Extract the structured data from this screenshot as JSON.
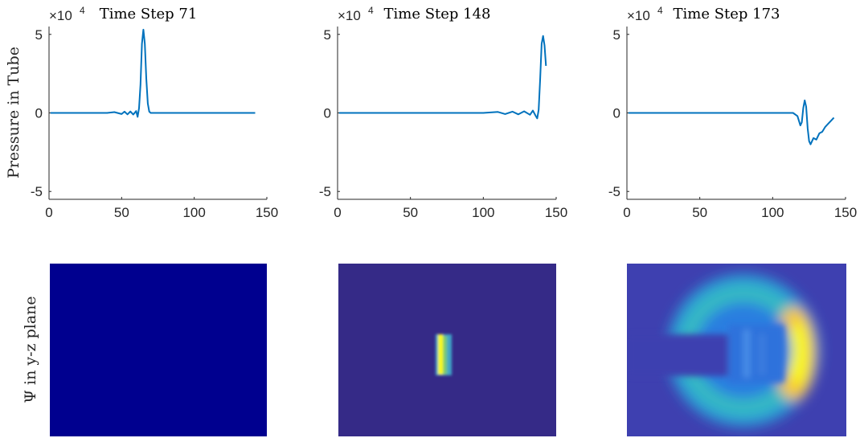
{
  "row_labels": {
    "top": "Pressure in Tube",
    "bottom": "Ψ in y-z plane"
  },
  "chart_data": [
    {
      "type": "line",
      "title": "Time Step 71",
      "exponent_label": "×10",
      "exponent_power": "4",
      "xlabel": "",
      "ylabel": "Pressure in Tube",
      "xlim": [
        0,
        150
      ],
      "ylim": [
        -55000,
        55000
      ],
      "xticks": [
        0,
        50,
        100,
        150
      ],
      "xtick_labels": [
        "0",
        "50",
        "100",
        "150"
      ],
      "yticks": [
        50000,
        0,
        -50000
      ],
      "ytick_labels": [
        "5",
        "0",
        "-5"
      ],
      "grid": false,
      "color": "#0072BD",
      "series": [
        {
          "x": [
            1,
            20,
            40,
            45,
            50,
            52,
            54,
            56,
            58,
            60,
            61,
            62,
            63,
            64,
            65,
            66,
            67,
            68,
            69,
            70,
            71,
            72,
            80,
            100,
            142
          ],
          "y": [
            0,
            0,
            0,
            500,
            -700,
            800,
            -900,
            900,
            -1000,
            1200,
            -2500,
            3000,
            18000,
            44000,
            53000,
            44000,
            22000,
            6000,
            800,
            0,
            0,
            0,
            0,
            0,
            0
          ]
        }
      ]
    },
    {
      "type": "line",
      "title": "Time Step 148",
      "exponent_label": "×10",
      "exponent_power": "4",
      "xlabel": "",
      "ylabel": "",
      "xlim": [
        0,
        150
      ],
      "ylim": [
        -55000,
        55000
      ],
      "xticks": [
        0,
        50,
        100,
        150
      ],
      "xtick_labels": [
        "0",
        "50",
        "100",
        "150"
      ],
      "yticks": [
        50000,
        0,
        -50000
      ],
      "ytick_labels": [
        "5",
        "0",
        "-5"
      ],
      "grid": false,
      "color": "#0072BD",
      "series": [
        {
          "x": [
            1,
            50,
            100,
            110,
            115,
            120,
            124,
            128,
            132,
            134,
            136,
            137,
            138,
            139,
            140,
            141,
            142,
            143
          ],
          "y": [
            0,
            0,
            0,
            600,
            -700,
            800,
            -900,
            1000,
            -1200,
            1500,
            -2000,
            -3500,
            2000,
            22000,
            44000,
            49000,
            43000,
            30000
          ]
        }
      ]
    },
    {
      "type": "line",
      "title": "Time Step 173",
      "exponent_label": "×10",
      "exponent_power": "4",
      "xlabel": "",
      "ylabel": "",
      "xlim": [
        0,
        150
      ],
      "ylim": [
        -55000,
        55000
      ],
      "xticks": [
        0,
        50,
        100,
        150
      ],
      "xtick_labels": [
        "0",
        "50",
        "100",
        "150"
      ],
      "yticks": [
        50000,
        0,
        -50000
      ],
      "ytick_labels": [
        "5",
        "0",
        "-5"
      ],
      "grid": false,
      "color": "#0072BD",
      "series": [
        {
          "x": [
            1,
            50,
            100,
            110,
            114,
            117,
            119,
            120,
            121,
            122,
            123,
            124,
            125,
            126,
            127,
            128,
            130,
            132,
            134,
            136,
            138,
            140,
            142
          ],
          "y": [
            0,
            0,
            0,
            0,
            0,
            -2000,
            -8000,
            -6000,
            3000,
            8000,
            4000,
            -10000,
            -18000,
            -20000,
            -18000,
            -16000,
            -17000,
            -13000,
            -12000,
            -9000,
            -7000,
            -5000,
            -3000
          ]
        }
      ]
    },
    {
      "type": "heatmap",
      "title": "",
      "field": "uniform",
      "colors": [
        "#00008F"
      ]
    },
    {
      "type": "heatmap",
      "title": "",
      "field": "thin-slab",
      "colors": [
        "#352A87",
        "#F8FA0D",
        "#5DBE88",
        "#38A8C6"
      ]
    },
    {
      "type": "heatmap",
      "title": "",
      "field": "ring-wave",
      "colors": [
        "#3E40B0",
        "#2BA3D5",
        "#34B7C4",
        "#FEC437",
        "#F9FB0E",
        "#2F6BD9"
      ]
    }
  ]
}
